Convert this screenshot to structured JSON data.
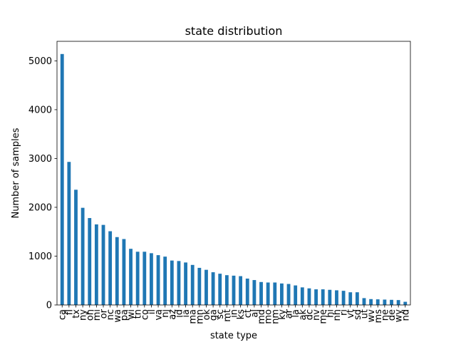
{
  "chart_data": {
    "type": "bar",
    "title": "state distribution",
    "xlabel": "state type",
    "ylabel": "Number of samples",
    "ylim": [
      0,
      5400
    ],
    "yticks": [
      0,
      1000,
      2000,
      3000,
      4000,
      5000
    ],
    "grid": false,
    "bar_color": "#1f77b4",
    "categories": [
      "ca",
      "fl",
      "tx",
      "ny",
      "oh",
      "mi",
      "or",
      "nc",
      "wa",
      "pa",
      "wi",
      "tn",
      "co",
      "il",
      "va",
      "nj",
      "az",
      "id",
      "ia",
      "ma",
      "mn",
      "ok",
      "ga",
      "sc",
      "mt",
      "in",
      "ks",
      "ct",
      "al",
      "md",
      "mo",
      "nm",
      "ky",
      "ar",
      "la",
      "ak",
      "dc",
      "nv",
      "me",
      "hi",
      "nh",
      "ri",
      "vt",
      "sd",
      "ut",
      "wv",
      "ms",
      "ne",
      "de",
      "wy",
      "nd"
    ],
    "values": [
      5140,
      2930,
      2360,
      1990,
      1780,
      1650,
      1640,
      1510,
      1390,
      1350,
      1150,
      1090,
      1090,
      1060,
      1020,
      990,
      910,
      900,
      870,
      820,
      760,
      720,
      670,
      640,
      610,
      600,
      590,
      540,
      510,
      470,
      460,
      460,
      440,
      430,
      400,
      360,
      340,
      320,
      320,
      310,
      300,
      290,
      260,
      260,
      140,
      120,
      115,
      110,
      105,
      100,
      65
    ]
  }
}
